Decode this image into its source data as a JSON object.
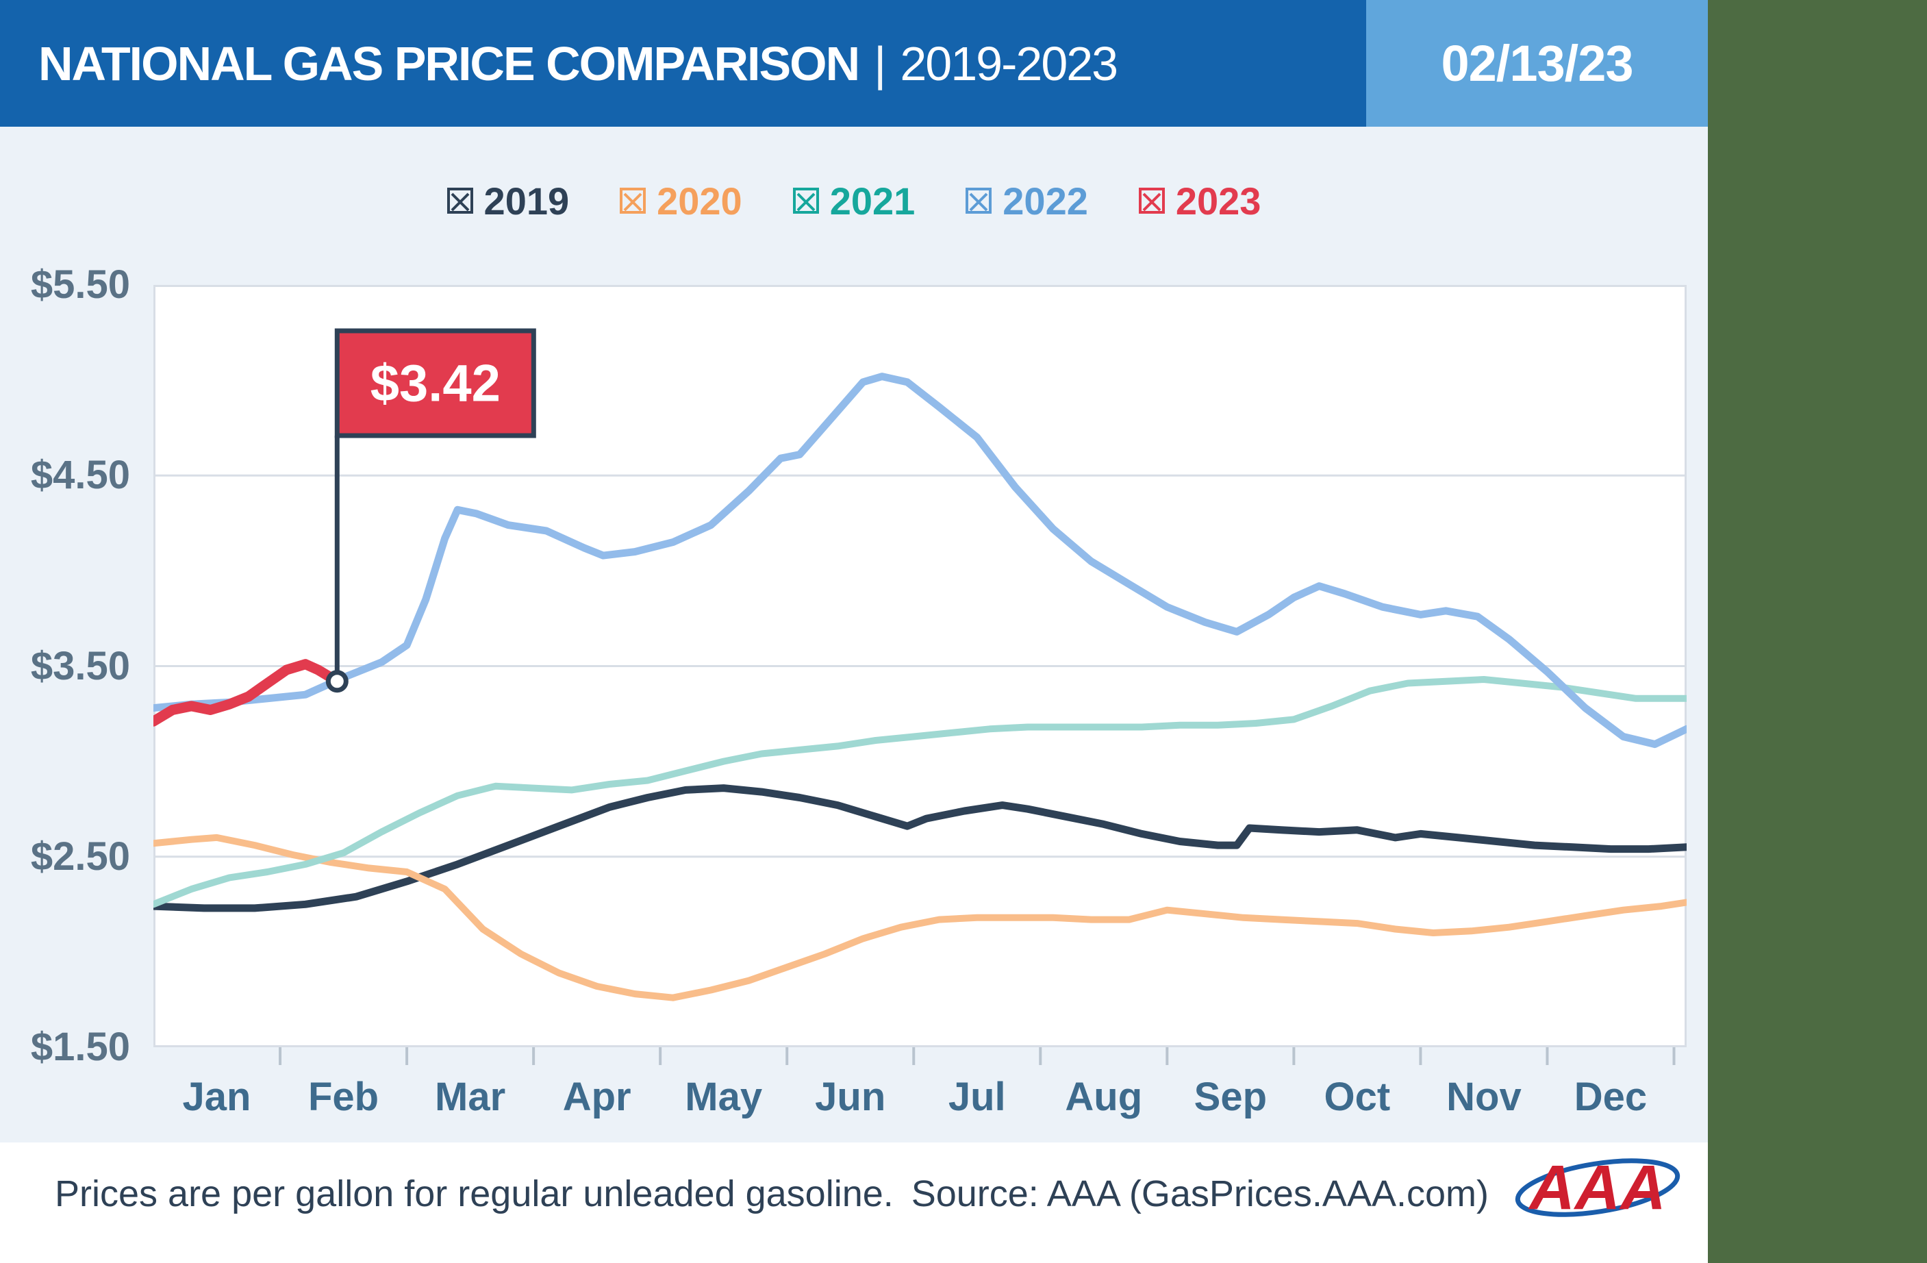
{
  "header": {
    "title_main": "NATIONAL GAS PRICE COMPARISON",
    "title_divider": "|",
    "title_range": "2019-2023",
    "date_badge": "02/13/23",
    "header_bg": "#1463ac",
    "date_bg": "#60a6dc"
  },
  "legend": {
    "items": [
      {
        "label": "2019",
        "color": "#2e4156"
      },
      {
        "label": "2020",
        "color": "#f5a05c"
      },
      {
        "label": "2021",
        "color": "#16a79c"
      },
      {
        "label": "2022",
        "color": "#5c9cd6"
      },
      {
        "label": "2023",
        "color": "#e23b4e"
      }
    ]
  },
  "chart_data": {
    "type": "line",
    "title": "National Gas Price Comparison 2019-2023",
    "unit": "USD per gallon of regular unleaded gasoline",
    "xlim": [
      0,
      12.1
    ],
    "ylim": [
      1.5,
      5.5
    ],
    "grid": "horizontal",
    "legend_position": "top",
    "y_ticks": [
      {
        "value": 5.5,
        "label": "$5.50"
      },
      {
        "value": 4.5,
        "label": "$4.50"
      },
      {
        "value": 3.5,
        "label": "$3.50"
      },
      {
        "value": 2.5,
        "label": "$2.50"
      },
      {
        "value": 1.5,
        "label": "$1.50"
      }
    ],
    "x_ticks": [
      "Jan",
      "Feb",
      "Mar",
      "Apr",
      "May",
      "Jun",
      "Jul",
      "Aug",
      "Sep",
      "Oct",
      "Nov",
      "Dec"
    ],
    "series": [
      {
        "name": "2019",
        "color": "#2e4156",
        "width": 11,
        "points": [
          [
            0,
            2.24
          ],
          [
            0.4,
            2.23
          ],
          [
            0.8,
            2.23
          ],
          [
            1.2,
            2.25
          ],
          [
            1.6,
            2.29
          ],
          [
            2.0,
            2.37
          ],
          [
            2.4,
            2.46
          ],
          [
            2.8,
            2.56
          ],
          [
            3.2,
            2.66
          ],
          [
            3.6,
            2.76
          ],
          [
            3.9,
            2.81
          ],
          [
            4.2,
            2.85
          ],
          [
            4.5,
            2.86
          ],
          [
            4.8,
            2.84
          ],
          [
            5.1,
            2.81
          ],
          [
            5.4,
            2.77
          ],
          [
            5.7,
            2.71
          ],
          [
            5.95,
            2.66
          ],
          [
            6.1,
            2.7
          ],
          [
            6.4,
            2.74
          ],
          [
            6.7,
            2.77
          ],
          [
            6.9,
            2.75
          ],
          [
            7.2,
            2.71
          ],
          [
            7.5,
            2.67
          ],
          [
            7.8,
            2.62
          ],
          [
            8.1,
            2.58
          ],
          [
            8.4,
            2.56
          ],
          [
            8.55,
            2.56
          ],
          [
            8.65,
            2.65
          ],
          [
            8.9,
            2.64
          ],
          [
            9.2,
            2.63
          ],
          [
            9.5,
            2.64
          ],
          [
            9.8,
            2.6
          ],
          [
            10.0,
            2.62
          ],
          [
            10.3,
            2.6
          ],
          [
            10.6,
            2.58
          ],
          [
            10.9,
            2.56
          ],
          [
            11.2,
            2.55
          ],
          [
            11.5,
            2.54
          ],
          [
            11.8,
            2.54
          ],
          [
            12.1,
            2.55
          ]
        ]
      },
      {
        "name": "2020",
        "color": "#f9bd8a",
        "width": 10,
        "points": [
          [
            0,
            2.57
          ],
          [
            0.3,
            2.59
          ],
          [
            0.5,
            2.6
          ],
          [
            0.8,
            2.56
          ],
          [
            1.1,
            2.51
          ],
          [
            1.4,
            2.47
          ],
          [
            1.7,
            2.44
          ],
          [
            2.0,
            2.42
          ],
          [
            2.3,
            2.33
          ],
          [
            2.6,
            2.12
          ],
          [
            2.9,
            1.99
          ],
          [
            3.2,
            1.89
          ],
          [
            3.5,
            1.82
          ],
          [
            3.8,
            1.78
          ],
          [
            4.1,
            1.76
          ],
          [
            4.4,
            1.8
          ],
          [
            4.7,
            1.85
          ],
          [
            5.0,
            1.92
          ],
          [
            5.3,
            1.99
          ],
          [
            5.6,
            2.07
          ],
          [
            5.9,
            2.13
          ],
          [
            6.2,
            2.17
          ],
          [
            6.5,
            2.18
          ],
          [
            6.8,
            2.18
          ],
          [
            7.1,
            2.18
          ],
          [
            7.4,
            2.17
          ],
          [
            7.7,
            2.17
          ],
          [
            8.0,
            2.22
          ],
          [
            8.3,
            2.2
          ],
          [
            8.6,
            2.18
          ],
          [
            8.9,
            2.17
          ],
          [
            9.2,
            2.16
          ],
          [
            9.5,
            2.15
          ],
          [
            9.8,
            2.12
          ],
          [
            10.1,
            2.1
          ],
          [
            10.4,
            2.11
          ],
          [
            10.7,
            2.13
          ],
          [
            11.0,
            2.16
          ],
          [
            11.3,
            2.19
          ],
          [
            11.6,
            2.22
          ],
          [
            11.9,
            2.24
          ],
          [
            12.1,
            2.26
          ]
        ]
      },
      {
        "name": "2021",
        "color": "#9fd8d2",
        "width": 10,
        "points": [
          [
            0,
            2.25
          ],
          [
            0.3,
            2.33
          ],
          [
            0.6,
            2.39
          ],
          [
            0.9,
            2.42
          ],
          [
            1.2,
            2.46
          ],
          [
            1.5,
            2.52
          ],
          [
            1.8,
            2.63
          ],
          [
            2.1,
            2.73
          ],
          [
            2.4,
            2.82
          ],
          [
            2.7,
            2.87
          ],
          [
            3.0,
            2.86
          ],
          [
            3.3,
            2.85
          ],
          [
            3.6,
            2.88
          ],
          [
            3.9,
            2.9
          ],
          [
            4.2,
            2.95
          ],
          [
            4.5,
            3.0
          ],
          [
            4.8,
            3.04
          ],
          [
            5.1,
            3.06
          ],
          [
            5.4,
            3.08
          ],
          [
            5.7,
            3.11
          ],
          [
            6.0,
            3.13
          ],
          [
            6.3,
            3.15
          ],
          [
            6.6,
            3.17
          ],
          [
            6.9,
            3.18
          ],
          [
            7.2,
            3.18
          ],
          [
            7.5,
            3.18
          ],
          [
            7.8,
            3.18
          ],
          [
            8.1,
            3.19
          ],
          [
            8.4,
            3.19
          ],
          [
            8.7,
            3.2
          ],
          [
            9.0,
            3.22
          ],
          [
            9.3,
            3.29
          ],
          [
            9.6,
            3.37
          ],
          [
            9.9,
            3.41
          ],
          [
            10.2,
            3.42
          ],
          [
            10.5,
            3.43
          ],
          [
            10.8,
            3.41
          ],
          [
            11.1,
            3.39
          ],
          [
            11.4,
            3.36
          ],
          [
            11.7,
            3.33
          ],
          [
            12.1,
            3.33
          ]
        ]
      },
      {
        "name": "2022",
        "color": "#92bbea",
        "width": 11,
        "points": [
          [
            0,
            3.28
          ],
          [
            0.3,
            3.3
          ],
          [
            0.6,
            3.31
          ],
          [
            0.9,
            3.33
          ],
          [
            1.2,
            3.35
          ],
          [
            1.5,
            3.44
          ],
          [
            1.8,
            3.52
          ],
          [
            2.0,
            3.61
          ],
          [
            2.15,
            3.85
          ],
          [
            2.3,
            4.17
          ],
          [
            2.4,
            4.32
          ],
          [
            2.55,
            4.3
          ],
          [
            2.8,
            4.24
          ],
          [
            3.1,
            4.21
          ],
          [
            3.4,
            4.12
          ],
          [
            3.55,
            4.08
          ],
          [
            3.8,
            4.1
          ],
          [
            4.1,
            4.15
          ],
          [
            4.4,
            4.24
          ],
          [
            4.7,
            4.42
          ],
          [
            4.95,
            4.59
          ],
          [
            5.1,
            4.61
          ],
          [
            5.35,
            4.8
          ],
          [
            5.6,
            4.99
          ],
          [
            5.75,
            5.02
          ],
          [
            5.95,
            4.99
          ],
          [
            6.2,
            4.86
          ],
          [
            6.5,
            4.7
          ],
          [
            6.8,
            4.44
          ],
          [
            7.1,
            4.22
          ],
          [
            7.4,
            4.05
          ],
          [
            7.7,
            3.93
          ],
          [
            8.0,
            3.81
          ],
          [
            8.3,
            3.73
          ],
          [
            8.55,
            3.68
          ],
          [
            8.8,
            3.77
          ],
          [
            9.0,
            3.86
          ],
          [
            9.2,
            3.92
          ],
          [
            9.4,
            3.88
          ],
          [
            9.7,
            3.81
          ],
          [
            10.0,
            3.77
          ],
          [
            10.2,
            3.79
          ],
          [
            10.45,
            3.76
          ],
          [
            10.7,
            3.64
          ],
          [
            11.0,
            3.47
          ],
          [
            11.3,
            3.28
          ],
          [
            11.6,
            3.13
          ],
          [
            11.85,
            3.09
          ],
          [
            12.1,
            3.17
          ]
        ]
      },
      {
        "name": "2023",
        "color": "#e23b4e",
        "width": 15,
        "points": [
          [
            0,
            3.21
          ],
          [
            0.15,
            3.27
          ],
          [
            0.3,
            3.29
          ],
          [
            0.45,
            3.27
          ],
          [
            0.6,
            3.3
          ],
          [
            0.75,
            3.34
          ],
          [
            0.9,
            3.41
          ],
          [
            1.05,
            3.48
          ],
          [
            1.2,
            3.51
          ],
          [
            1.3,
            3.48
          ],
          [
            1.4,
            3.44
          ],
          [
            1.45,
            3.42
          ]
        ]
      }
    ],
    "annotation": {
      "label": "$3.42",
      "x": 1.45,
      "y": 3.42,
      "flag_fill": "#e23b4e",
      "flag_border": "#2e4156",
      "text_color": "#ffffff"
    }
  },
  "footer": {
    "note": "Prices are per gallon for regular unleaded gasoline.",
    "source": "Source: AAA (GasPrices.AAA.com)",
    "logo_text": "AAA"
  }
}
